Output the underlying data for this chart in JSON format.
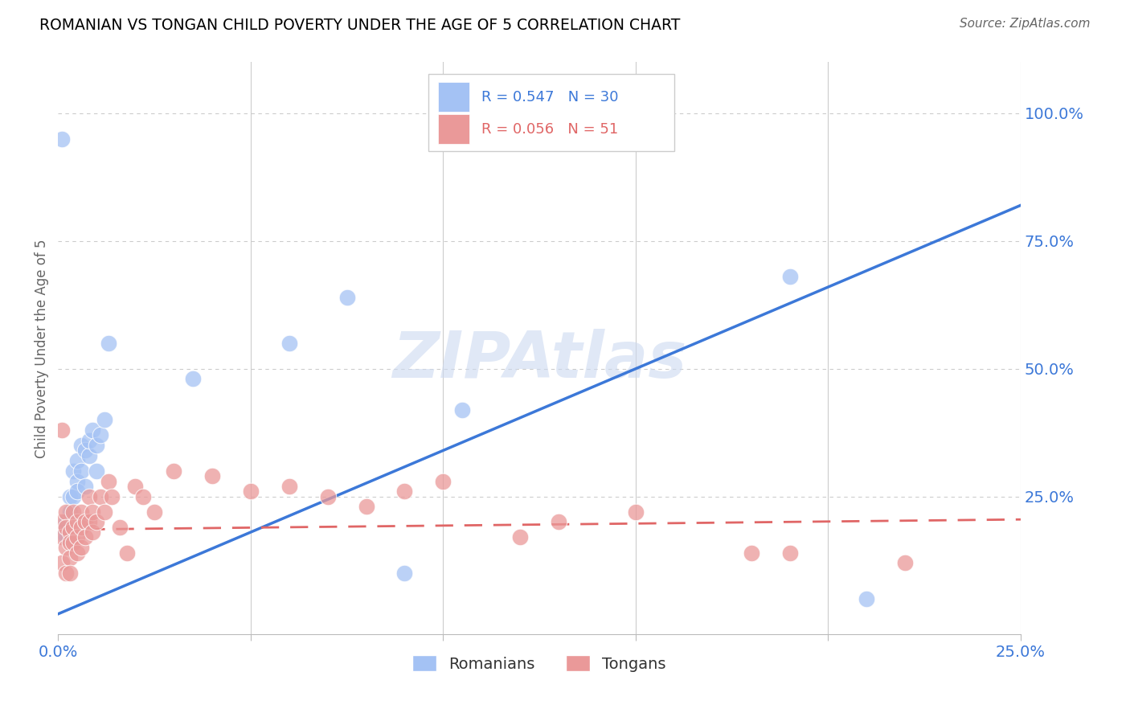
{
  "title": "ROMANIAN VS TONGAN CHILD POVERTY UNDER THE AGE OF 5 CORRELATION CHART",
  "source": "Source: ZipAtlas.com",
  "ylabel": "Child Poverty Under the Age of 5",
  "watermark": "ZIPAtlas",
  "xlim": [
    0.0,
    0.25
  ],
  "ylim": [
    -0.02,
    1.1
  ],
  "romanian_color": "#a4c2f4",
  "tongan_color": "#ea9999",
  "romanian_line_color": "#3c78d8",
  "tongan_line_color": "#e06666",
  "legend_label_romanian": "Romanians",
  "legend_label_tongan": "Tongans",
  "romanian_x": [
    0.001,
    0.001,
    0.002,
    0.002,
    0.003,
    0.003,
    0.004,
    0.004,
    0.005,
    0.005,
    0.005,
    0.006,
    0.006,
    0.007,
    0.007,
    0.008,
    0.008,
    0.009,
    0.01,
    0.01,
    0.011,
    0.012,
    0.013,
    0.035,
    0.06,
    0.075,
    0.09,
    0.105,
    0.19,
    0.21
  ],
  "romanian_y": [
    0.95,
    0.18,
    0.2,
    0.17,
    0.22,
    0.25,
    0.3,
    0.25,
    0.28,
    0.26,
    0.32,
    0.3,
    0.35,
    0.27,
    0.34,
    0.33,
    0.36,
    0.38,
    0.35,
    0.3,
    0.37,
    0.4,
    0.55,
    0.48,
    0.55,
    0.64,
    0.1,
    0.42,
    0.68,
    0.05
  ],
  "tongan_x": [
    0.001,
    0.001,
    0.001,
    0.001,
    0.002,
    0.002,
    0.002,
    0.002,
    0.003,
    0.003,
    0.003,
    0.003,
    0.004,
    0.004,
    0.004,
    0.005,
    0.005,
    0.005,
    0.006,
    0.006,
    0.006,
    0.007,
    0.007,
    0.008,
    0.008,
    0.009,
    0.009,
    0.01,
    0.011,
    0.012,
    0.013,
    0.014,
    0.016,
    0.018,
    0.02,
    0.022,
    0.025,
    0.03,
    0.04,
    0.05,
    0.06,
    0.07,
    0.08,
    0.09,
    0.1,
    0.12,
    0.13,
    0.15,
    0.18,
    0.19,
    0.22
  ],
  "tongan_y": [
    0.38,
    0.2,
    0.17,
    0.12,
    0.22,
    0.19,
    0.15,
    0.1,
    0.18,
    0.16,
    0.13,
    0.1,
    0.22,
    0.19,
    0.16,
    0.2,
    0.17,
    0.14,
    0.22,
    0.19,
    0.15,
    0.2,
    0.17,
    0.25,
    0.2,
    0.22,
    0.18,
    0.2,
    0.25,
    0.22,
    0.28,
    0.25,
    0.19,
    0.14,
    0.27,
    0.25,
    0.22,
    0.3,
    0.29,
    0.26,
    0.27,
    0.25,
    0.23,
    0.26,
    0.28,
    0.17,
    0.2,
    0.22,
    0.14,
    0.14,
    0.12
  ],
  "rom_line_x0": 0.0,
  "rom_line_x1": 0.25,
  "rom_line_y0": 0.02,
  "rom_line_y1": 0.82,
  "ton_line_x0": 0.0,
  "ton_line_x1": 0.25,
  "ton_line_y0": 0.185,
  "ton_line_y1": 0.205,
  "background_color": "#ffffff",
  "grid_color": "#cccccc",
  "title_color": "#000000",
  "tick_color": "#3c78d8"
}
